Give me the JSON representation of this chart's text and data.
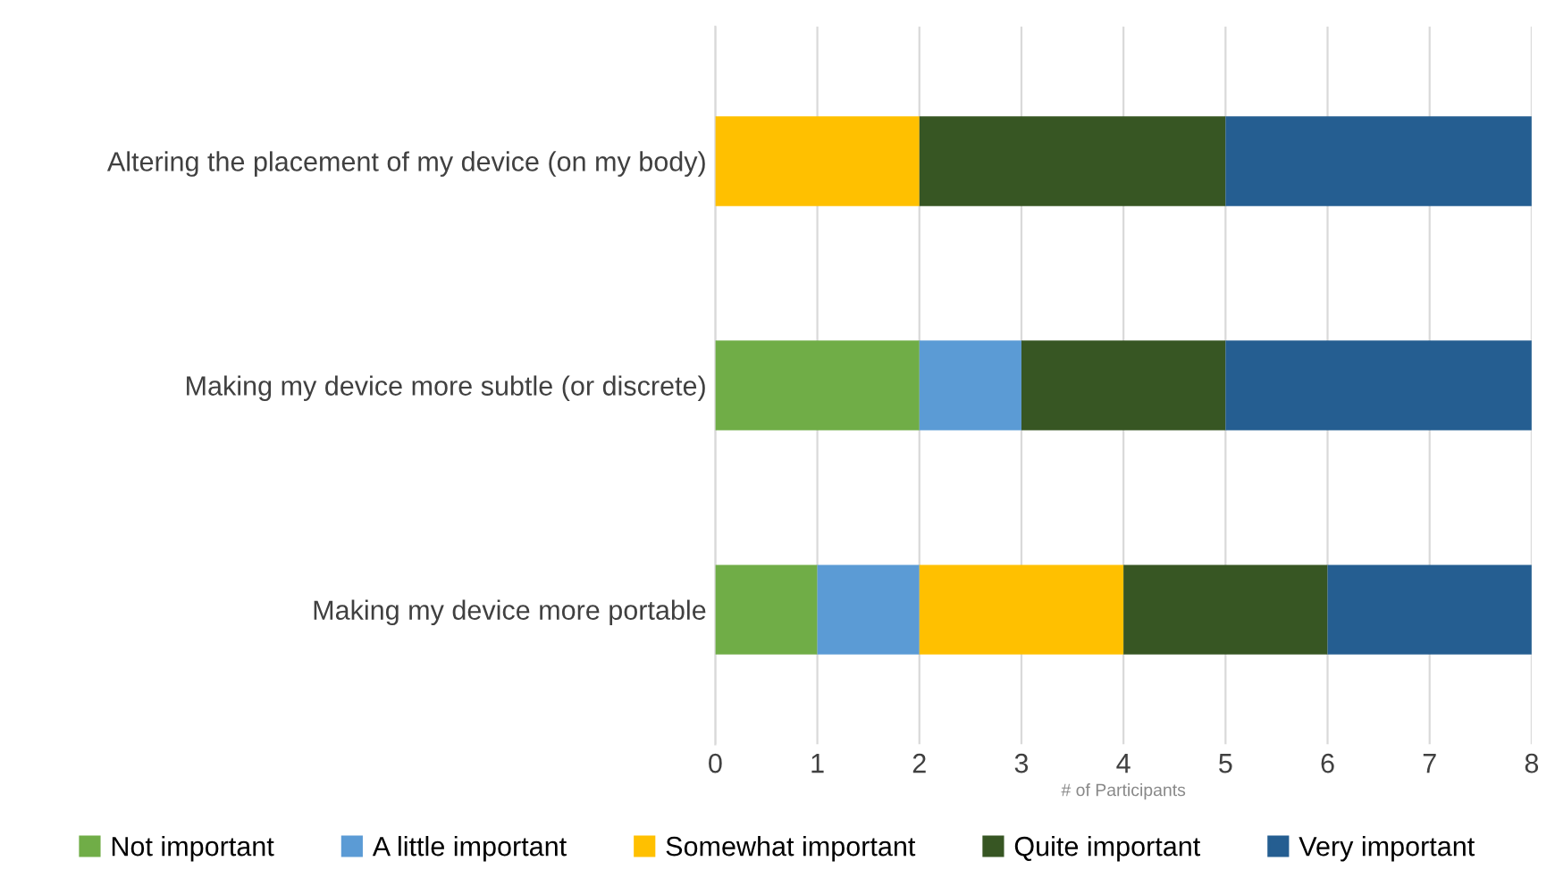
{
  "chart_data": {
    "type": "bar",
    "orientation": "horizontal",
    "stacked": true,
    "categories": [
      "Altering the placement of my device (on my body)",
      "Making my device more subtle (or discrete)",
      "Making my device more portable"
    ],
    "xlabel": "# of Participants",
    "xlim": [
      0,
      8
    ],
    "xticks": [
      0,
      1,
      2,
      3,
      4,
      5,
      6,
      7,
      8
    ],
    "grid": "x",
    "legend": "bottom",
    "series": [
      {
        "name": "Not important",
        "color": "#70ad47",
        "values": [
          0,
          2,
          1
        ]
      },
      {
        "name": "A little important",
        "color": "#5b9bd5",
        "values": [
          0,
          1,
          1
        ]
      },
      {
        "name": "Somewhat important",
        "color": "#ffc000",
        "values": [
          2,
          0,
          2
        ]
      },
      {
        "name": "Quite important",
        "color": "#375623",
        "values": [
          3,
          2,
          2
        ]
      },
      {
        "name": "Very important",
        "color": "#255e91",
        "values": [
          3,
          3,
          2
        ]
      }
    ]
  }
}
